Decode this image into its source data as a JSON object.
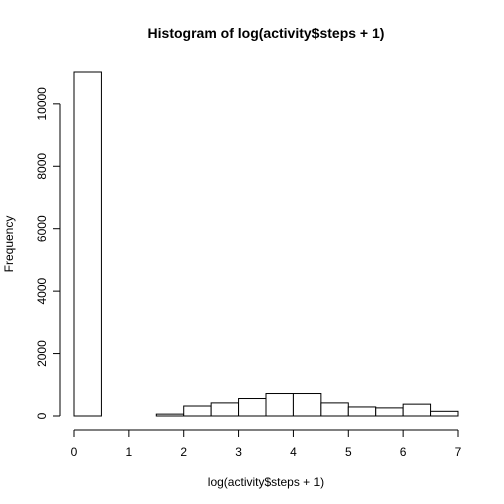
{
  "chart_data": {
    "type": "bar",
    "title": "Histogram of log(activity$steps + 1)",
    "xlabel": "log(activity$steps + 1)",
    "ylabel": "Frequency",
    "bin_edges": [
      0,
      0.5,
      1,
      1.5,
      2,
      2.5,
      3,
      3.5,
      4,
      4.5,
      5,
      5.5,
      6,
      6.5,
      7
    ],
    "values": [
      11020,
      0,
      0,
      60,
      320,
      420,
      560,
      720,
      720,
      420,
      290,
      260,
      380,
      150
    ],
    "xlim": [
      0,
      7
    ],
    "ylim": [
      0,
      11020
    ],
    "x_ticks": [
      "0",
      "1",
      "2",
      "3",
      "4",
      "5",
      "6",
      "7"
    ],
    "y_ticks": [
      "0",
      "2000",
      "4000",
      "6000",
      "8000",
      "10000"
    ],
    "grid": false,
    "legend": "none"
  }
}
